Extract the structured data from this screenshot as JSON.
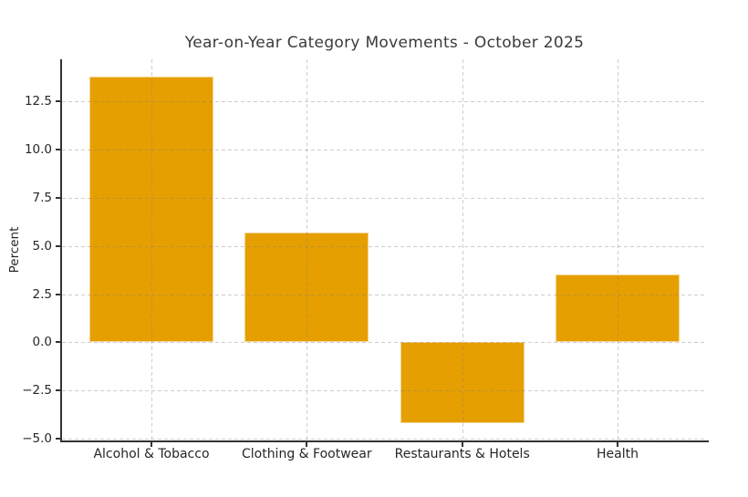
{
  "chart_data": {
    "type": "bar",
    "title": "Year-on-Year Category Movements - October 2025",
    "categories": [
      "Alcohol & Tobacco",
      "Clothing & Footwear",
      "Restaurants & Hotels",
      "Health"
    ],
    "values": [
      13.8,
      5.7,
      -4.2,
      3.5
    ],
    "xlabel": "",
    "ylabel": "Percent",
    "ylim": [
      -5.1,
      14.7
    ],
    "yticks": [
      -5.0,
      -2.5,
      0.0,
      2.5,
      5.0,
      7.5,
      10.0,
      12.5
    ],
    "ytick_labels": [
      "−5.0",
      "−2.5",
      "0.0",
      "2.5",
      "5.0",
      "7.5",
      "10.0",
      "12.5"
    ],
    "bar_color": "#E69F00",
    "bar_width_fraction": 0.8,
    "grid": true,
    "grid_style": "dashed",
    "grid_over_bars": true,
    "legend_position": "none",
    "spine_color": "#333333",
    "text_color": "#262626"
  }
}
